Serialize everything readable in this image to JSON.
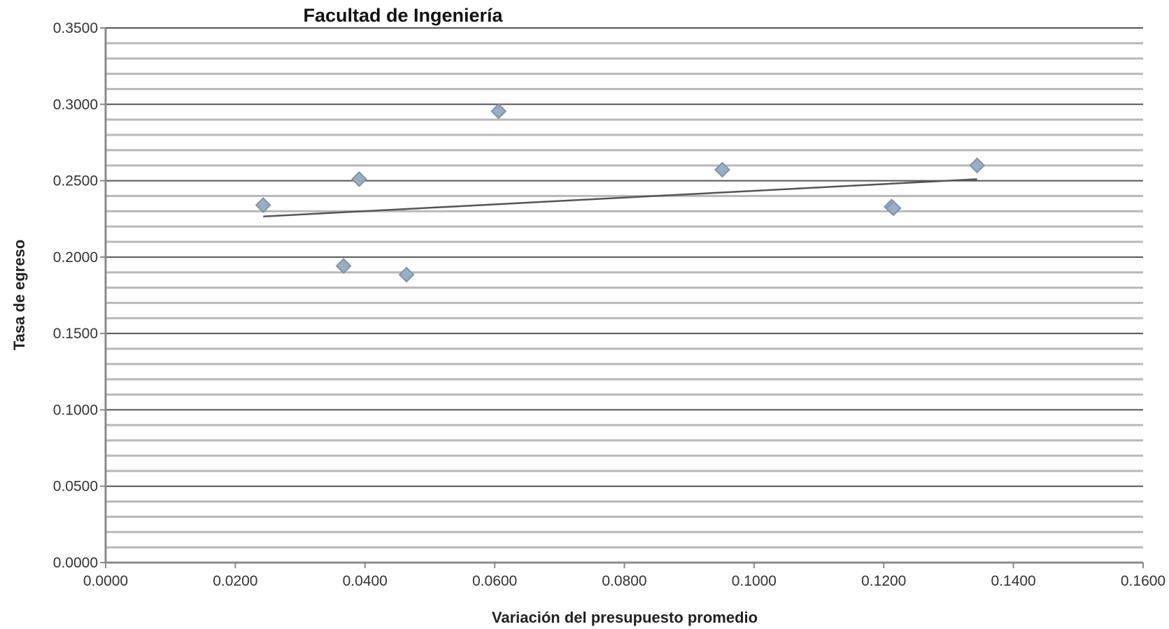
{
  "chart_data": {
    "type": "scatter",
    "title": "Facultad de Ingeniería",
    "xlabel": "Variación del presupuesto promedio",
    "ylabel": "Tasa de egreso",
    "xlim": [
      0,
      0.16
    ],
    "ylim": [
      0,
      0.35
    ],
    "x_ticks": [
      0,
      0.02,
      0.04,
      0.06,
      0.08,
      0.1,
      0.12,
      0.14,
      0.16
    ],
    "y_ticks": [
      0,
      0.05,
      0.1,
      0.15,
      0.2,
      0.25,
      0.3,
      0.35
    ],
    "x_tick_labels": [
      "0.0000",
      "0.0200",
      "0.0400",
      "0.0600",
      "0.0800",
      "0.1000",
      "0.1200",
      "0.1400",
      "0.1600"
    ],
    "y_tick_labels": [
      "0.0000",
      "0.0500",
      "0.1000",
      "0.1500",
      "0.2000",
      "0.2500",
      "0.3000",
      "0.3500"
    ],
    "y_minor_step": 0.01,
    "grid": true,
    "legend": "none",
    "points": {
      "x": [
        0.0243,
        0.0367,
        0.0391,
        0.0464,
        0.0606,
        0.0951,
        0.1212,
        0.1215,
        0.1344
      ],
      "y": [
        0.234,
        0.1942,
        0.251,
        0.1885,
        0.2955,
        0.2572,
        0.233,
        0.232,
        0.26
      ]
    },
    "trendline": {
      "type": "linear",
      "x": [
        0.0243,
        0.1344
      ],
      "y": [
        0.2266,
        0.251
      ]
    },
    "colors": {
      "marker": "#9aaec4",
      "marker_edge": "#7f93aa",
      "trendline": "#555555",
      "major_grid": "#555555",
      "minor_grid": "#b8b8b8"
    }
  }
}
